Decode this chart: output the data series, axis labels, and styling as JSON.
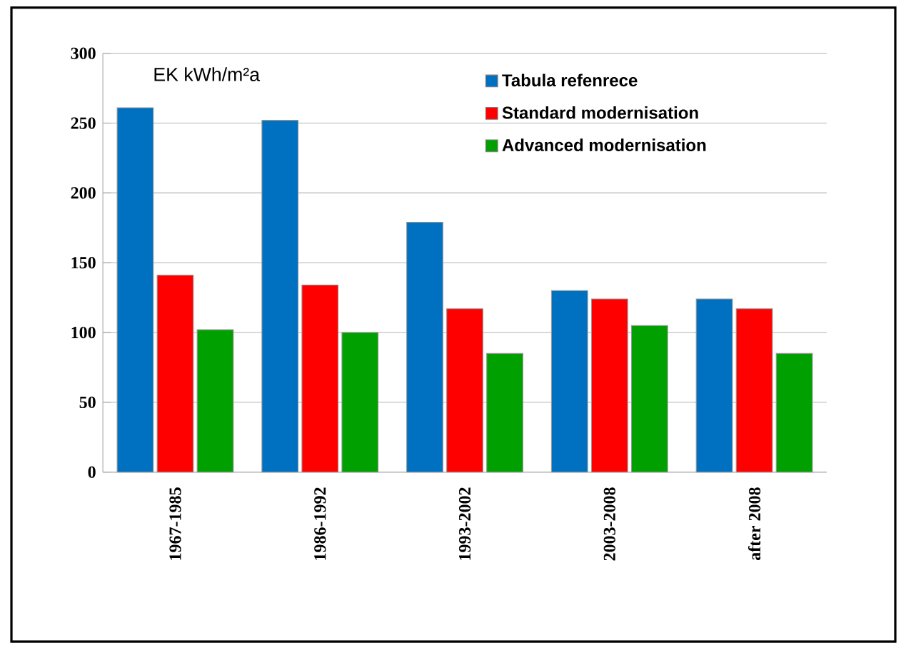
{
  "chart_data": {
    "type": "bar",
    "ylabel": "EK  kWh/m²a",
    "categories": [
      "1967-1985",
      "1986-1992",
      "1993-2002",
      "2003-2008",
      "after 2008"
    ],
    "series": [
      {
        "name": "Tabula refenrece",
        "color": "#0070c0",
        "values": [
          261,
          252,
          179,
          130,
          124
        ]
      },
      {
        "name": "Standard modernisation",
        "color": "#ff0000",
        "values": [
          141,
          134,
          117,
          124,
          117
        ]
      },
      {
        "name": "Advanced modernisation",
        "color": "#00a000",
        "values": [
          102,
          100,
          85,
          105,
          85
        ]
      }
    ],
    "ylim": [
      0,
      300
    ],
    "yticks": [
      0,
      50,
      100,
      150,
      200,
      250,
      300
    ],
    "grid": "y",
    "legend": "top right"
  }
}
